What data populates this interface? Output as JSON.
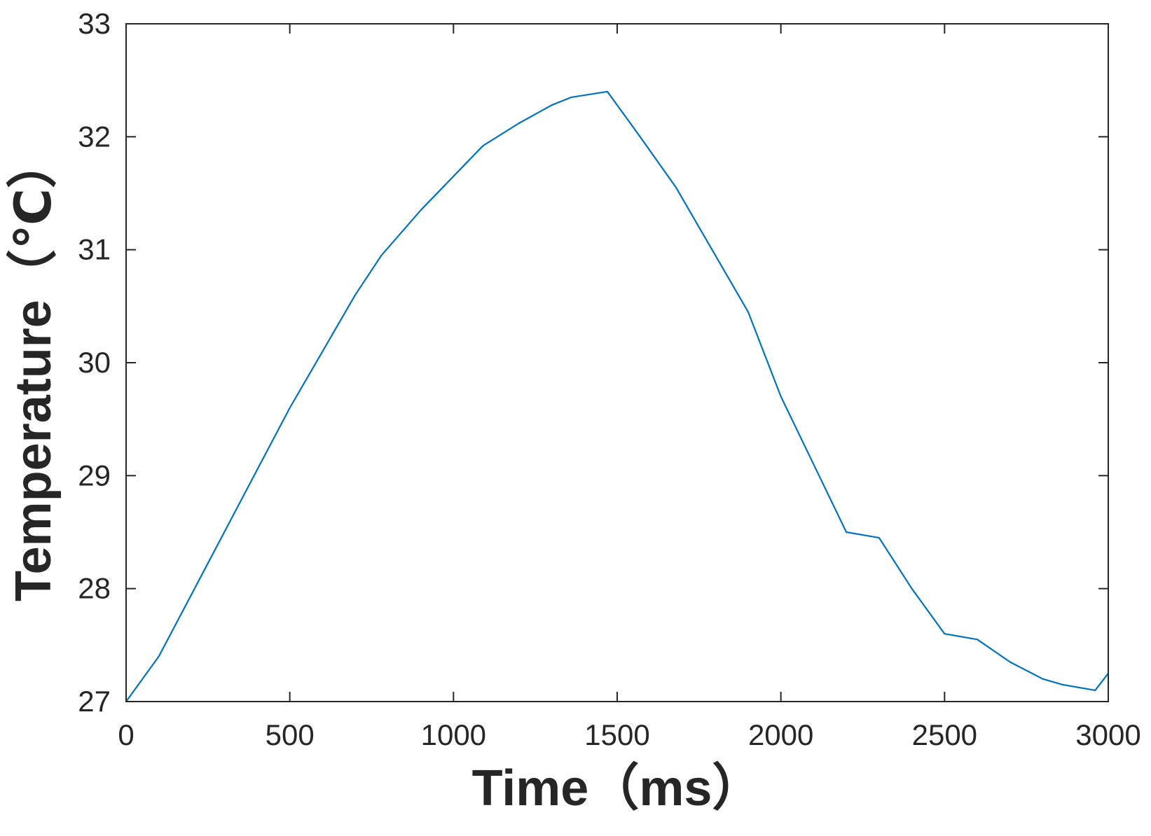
{
  "colors": {
    "series": "#0072bd",
    "axes": "#262626",
    "background": "#ffffff"
  },
  "chart_data": {
    "type": "line",
    "title": "",
    "xlabel": "Time（ms）",
    "ylabel": "Temperature（℃）",
    "xlim": [
      0,
      3000
    ],
    "ylim": [
      27,
      33
    ],
    "xticks": [
      0,
      500,
      1000,
      1500,
      2000,
      2500,
      3000
    ],
    "yticks": [
      27,
      28,
      29,
      30,
      31,
      32,
      33
    ],
    "xtick_labels": [
      "0",
      "500",
      "1000",
      "1500",
      "2000",
      "2500",
      "3000"
    ],
    "ytick_labels": [
      "27",
      "28",
      "29",
      "30",
      "31",
      "32",
      "33"
    ],
    "grid": false,
    "box": true,
    "series": [
      {
        "x": [
          0,
          100,
          200,
          300,
          400,
          500,
          600,
          700,
          780,
          900,
          1000,
          1090,
          1200,
          1300,
          1360,
          1470,
          1570,
          1680,
          1790,
          1900,
          2000,
          2100,
          2200,
          2300,
          2400,
          2500,
          2600,
          2700,
          2800,
          2860,
          2960,
          3000
        ],
        "y": [
          27.0,
          27.4,
          27.95,
          28.5,
          29.05,
          29.6,
          30.1,
          30.6,
          30.95,
          31.35,
          31.65,
          31.92,
          32.12,
          32.28,
          32.35,
          32.4,
          32.0,
          31.55,
          31.0,
          30.45,
          29.7,
          29.1,
          28.5,
          28.45,
          28.0,
          27.6,
          27.55,
          27.35,
          27.2,
          27.15,
          27.1,
          27.25
        ]
      }
    ]
  }
}
